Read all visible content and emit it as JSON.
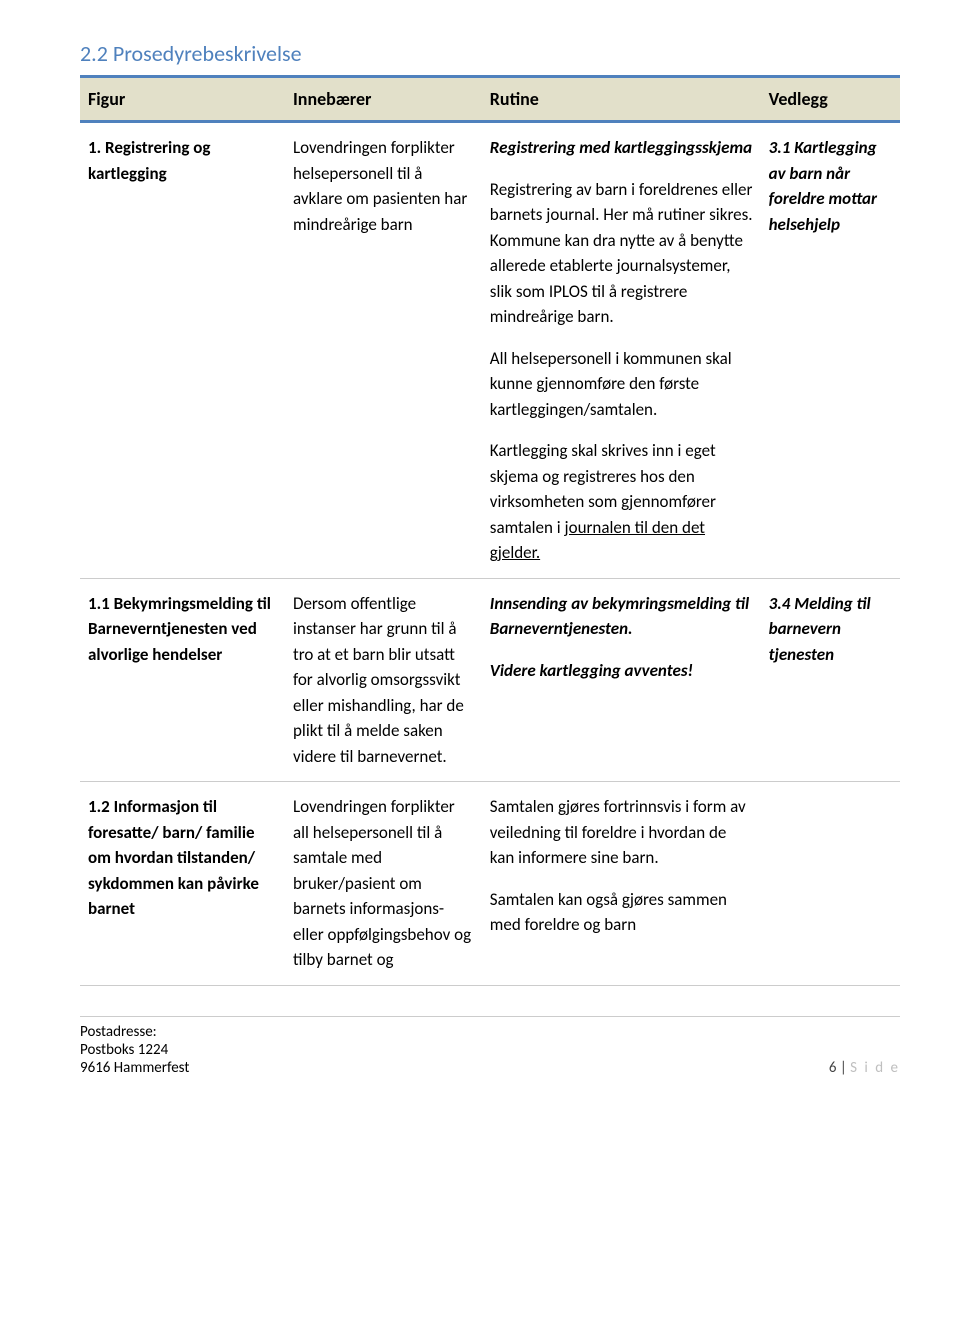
{
  "colors": {
    "section_title": "#4f81bd",
    "header_bg": "#e2e0ca",
    "header_border": "#4f81bd",
    "row_border": "#cccccc",
    "text": "#000000",
    "page_light": "#bfbfbf"
  },
  "fonts": {
    "body_family": "Calibri, 'Segoe UI', Arial, sans-serif",
    "section_title_size": 22,
    "header_size": 18,
    "cell_size": 17,
    "footer_size": 15
  },
  "section_title": "2.2 Prosedyrebeskrivelse",
  "table": {
    "columns": [
      "Figur",
      "Innebærer",
      "Rutine",
      "Vedlegg"
    ],
    "col_widths_pct": [
      25,
      24,
      34,
      17
    ],
    "rows": [
      {
        "figur": "1. Registrering og kartlegging",
        "innebaerer": "Lovendringen forplikter helsepersonell til å avklare om pasienten har mindreårige barn",
        "rutine": {
          "p1_head": "Registrering med kartleggingsskjema",
          "p2": "Registrering av barn i foreldrenes eller barnets journal. Her må rutiner sikres. Kommune kan dra nytte av å benytte allerede etablerte journalsystemer, slik som IPLOS til å registrere mindreårige barn.",
          "p3": "All helsepersonell i kommunen skal kunne gjennomføre den første kartleggingen/samtalen.",
          "p4_pre": "Kartlegging skal skrives inn i eget skjema og registreres hos den virksomheten  som gjennomfører samtalen i ",
          "p4_underline": "journalen til den det gjelder."
        },
        "vedlegg": "3.1 Kartlegging av barn når foreldre mottar helsehjelp"
      },
      {
        "figur": "1.1 Bekymringsmelding til Barneverntjenesten ved alvorlige hendelser",
        "innebaerer": "Dersom offentlige instanser har grunn til å tro at et barn blir utsatt for alvorlig omsorgssvikt eller mishandling, har de plikt til å melde saken videre til barnevernet.",
        "rutine": {
          "p1_head": "Innsending av bekymringsmelding til Barneverntjenesten.",
          "p2_head": "Videre kartlegging avventes!"
        },
        "vedlegg": "3.4 Melding til barnevern tjenesten"
      },
      {
        "figur": "1.2 Informasjon til foresatte/ barn/ familie om hvordan tilstanden/ sykdommen kan påvirke barnet",
        "innebaerer": "Lovendringen forplikter all helsepersonell til å samtale med bruker/pasient om barnets informasjons- eller oppfølgingsbehov og tilby barnet og",
        "rutine": {
          "p1": "Samtalen gjøres fortrinnsvis i form av veiledning til foreldre i hvordan de kan informere sine barn.",
          "p2": "Samtalen kan også gjøres sammen med foreldre og barn"
        },
        "vedlegg": ""
      }
    ]
  },
  "footer": {
    "addr_label": "Postadresse:",
    "addr_line1": "Postboks 1224",
    "addr_line2": "9616 Hammerfest",
    "page_num": "6",
    "page_sep": " | ",
    "page_word": "S i d e"
  }
}
